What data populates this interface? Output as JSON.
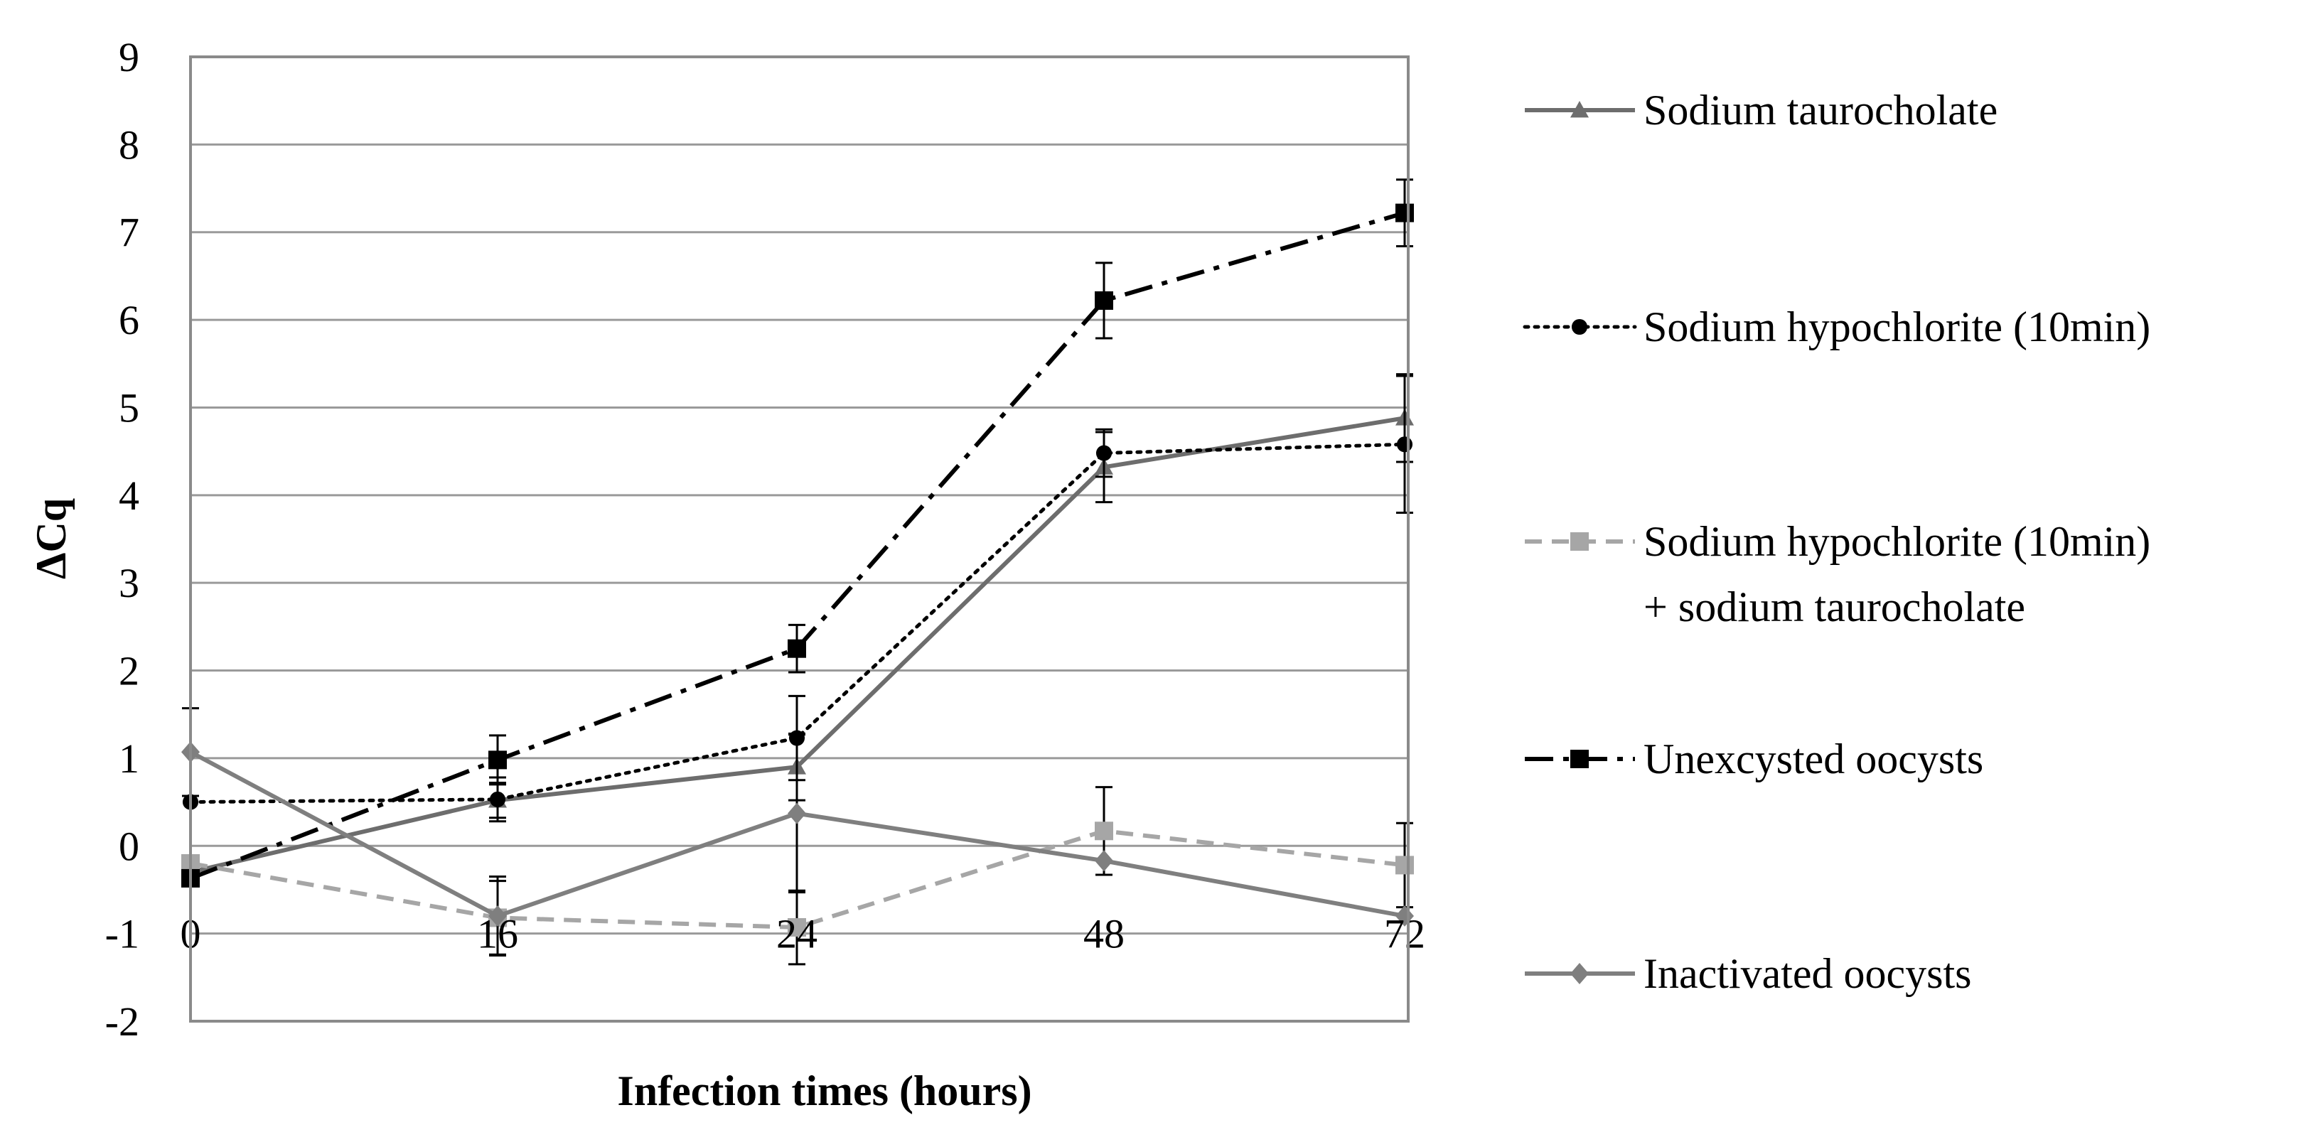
{
  "chart_data": {
    "type": "line",
    "title": "",
    "xlabel": "Infection times (hours)",
    "ylabel": "ΔCq",
    "categories": [
      "0",
      "16",
      "24",
      "48",
      "72"
    ],
    "ylim": [
      -2,
      9
    ],
    "yticks": [
      "-2",
      "-1",
      "0",
      "1",
      "2",
      "3",
      "4",
      "5",
      "6",
      "7",
      "8",
      "9"
    ],
    "grid": true,
    "legend_position": "right",
    "series": [
      {
        "name": "Sodium taurocholate",
        "legend_lines": [
          "Sodium taurocholate"
        ],
        "values": [
          -0.3,
          0.52,
          0.9,
          4.32,
          4.88
        ],
        "errors": [
          0.0,
          0.2,
          0.38,
          0.4,
          0.5
        ],
        "color": "#6d6d6d",
        "marker": "triangle",
        "dash": "solid"
      },
      {
        "name": "Sodium hypochlorite (10min)",
        "legend_lines": [
          "Sodium hypochlorite (10min)"
        ],
        "values": [
          0.5,
          0.53,
          1.23,
          4.48,
          4.58
        ],
        "errors": [
          0.0,
          0.25,
          0.48,
          0.27,
          0.78
        ],
        "color": "#000000",
        "marker": "circle",
        "dash": "dotted"
      },
      {
        "name": "Sodium hypochlorite (10min) + sodium taurocholate",
        "legend_lines": [
          "Sodium hypochlorite (10min)",
          "+ sodium taurocholate"
        ],
        "values": [
          -0.2,
          -0.82,
          -0.93,
          0.17,
          -0.22
        ],
        "errors": [
          0.0,
          0.42,
          0.42,
          0.5,
          0.48
        ],
        "color": "#a6a6a6",
        "marker": "square",
        "dash": "dashed"
      },
      {
        "name": "Unexcysted oocysts",
        "legend_lines": [
          "Unexcysted oocysts"
        ],
        "values": [
          -0.37,
          0.98,
          2.25,
          6.22,
          7.22
        ],
        "errors": [
          0.0,
          0.28,
          0.27,
          0.43,
          0.38
        ],
        "color": "#000000",
        "marker": "square",
        "dash": "dashdot"
      },
      {
        "name": "Inactivated oocysts",
        "legend_lines": [
          "Inactivated oocysts"
        ],
        "values": [
          1.07,
          -0.8,
          0.37,
          -0.17,
          -0.8
        ],
        "errors": [
          0.5,
          0.45,
          0.9,
          0.0,
          0.0
        ],
        "color": "#7f7f7f",
        "marker": "diamond",
        "dash": "solid"
      }
    ]
  }
}
